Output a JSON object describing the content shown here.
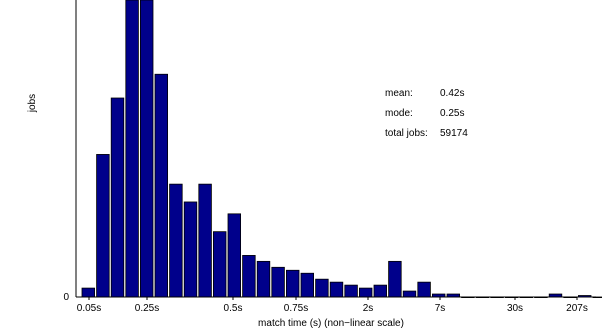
{
  "chart_data": {
    "type": "bar",
    "title": "",
    "xlabel": "match time (s) (non−linear scale)",
    "ylabel": "jobs",
    "y_tick_labels": [
      "0"
    ],
    "x_tick_labels": [
      "0.05s",
      "0.25s",
      "0.5s",
      "0.75s",
      "2s",
      "7s",
      "30s",
      "207s"
    ],
    "ylim": [
      0,
      100
    ],
    "bar_color": "#00008b",
    "grid": false,
    "values": [
      3,
      48,
      67,
      100,
      100,
      75,
      38,
      32,
      38,
      22,
      28,
      14,
      12,
      10,
      9,
      8,
      6,
      5,
      4,
      3,
      4,
      12,
      2,
      5,
      1,
      1,
      0,
      0,
      0,
      0,
      0,
      0,
      1,
      0,
      0.5,
      0,
      0,
      0,
      0,
      0,
      0
    ]
  },
  "stats": {
    "mean_label": "mean:",
    "mean_value": "0.42s",
    "mode_label": "mode:",
    "mode_value": "0.25s",
    "total_label": "total jobs:",
    "total_value": "59174"
  }
}
